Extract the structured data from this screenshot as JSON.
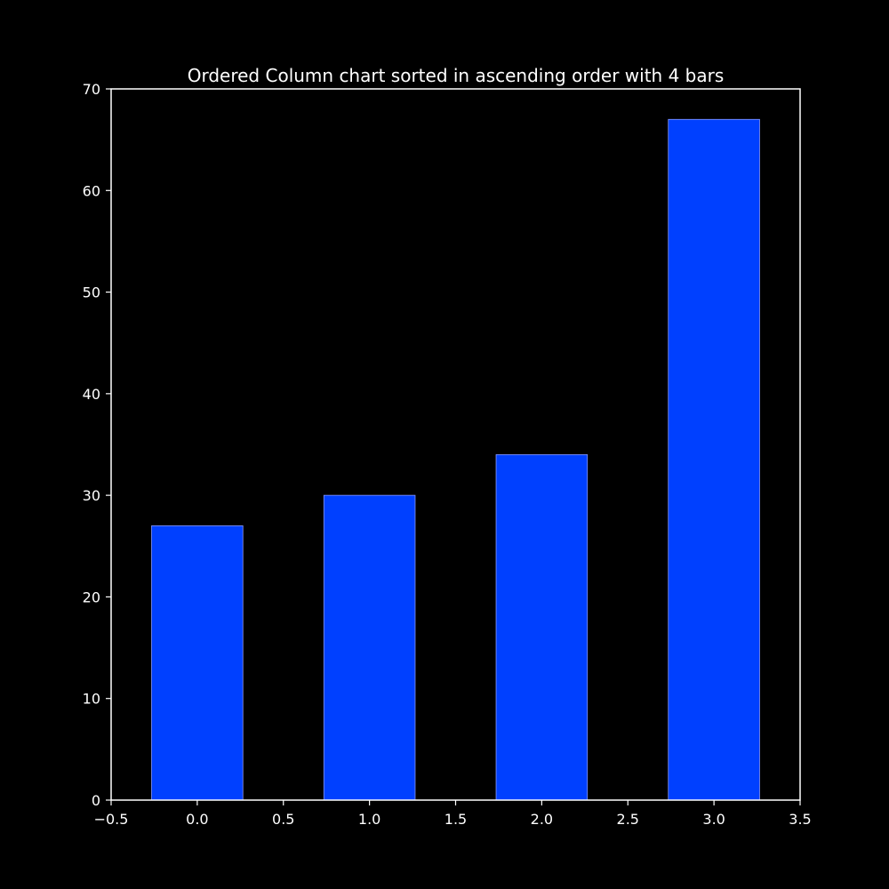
{
  "chart_data": {
    "type": "bar",
    "title": "Ordered Column chart sorted in ascending order with 4 bars",
    "x": [
      0,
      1,
      2,
      3
    ],
    "values": [
      27,
      30,
      34,
      67
    ],
    "bar_width": 0.53,
    "xlim": [
      -0.5,
      3.5
    ],
    "ylim": [
      0,
      70
    ],
    "x_ticks": [
      -0.5,
      0.0,
      0.5,
      1.0,
      1.5,
      2.0,
      2.5,
      3.0,
      3.5
    ],
    "x_tick_labels": [
      "−0.5",
      "0.0",
      "0.5",
      "1.0",
      "1.5",
      "2.0",
      "2.5",
      "3.0",
      "3.5"
    ],
    "y_ticks": [
      0,
      10,
      20,
      30,
      40,
      50,
      60,
      70
    ],
    "y_tick_labels": [
      "0",
      "10",
      "20",
      "30",
      "40",
      "50",
      "60",
      "70"
    ],
    "xlabel": "",
    "ylabel": "",
    "grid": false,
    "colors": {
      "background": "#000000",
      "bar_fill": "#0040ff",
      "bar_edge": "#8899ff",
      "axis": "#ffffff",
      "text": "#ffffff"
    }
  }
}
